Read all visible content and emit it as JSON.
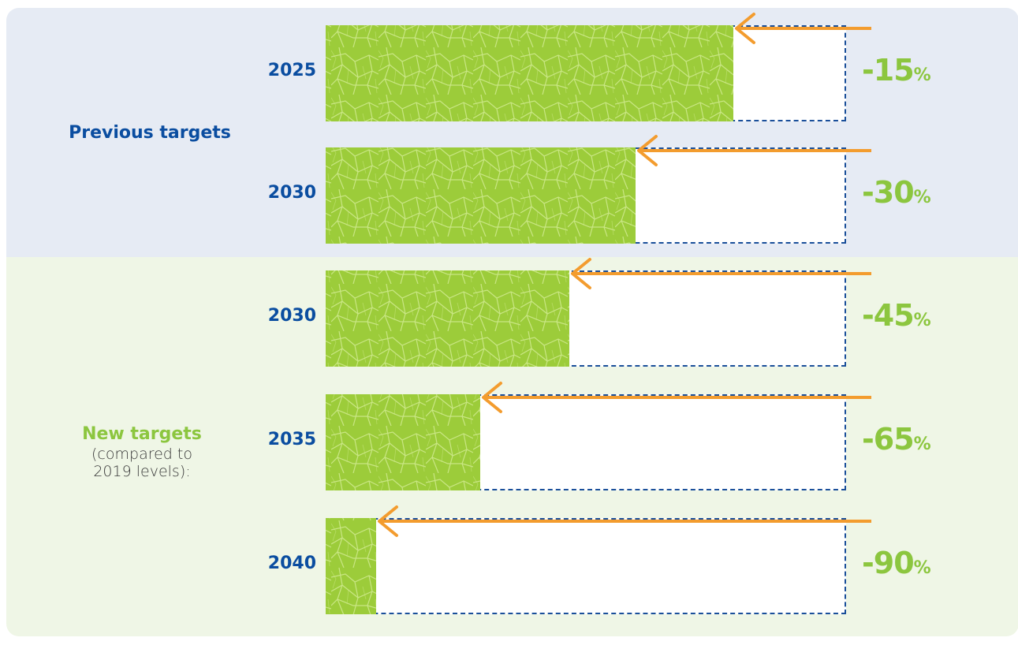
{
  "groups": {
    "previous": {
      "title": "Previous targets"
    },
    "new": {
      "title": "New targets",
      "subtitle_line1": "(compared to",
      "subtitle_line2": "2019 levels):"
    }
  },
  "colors": {
    "leaf": "#9ccc3a",
    "leaf_vein": "#d8ef9c",
    "frame": "#1a4f9a",
    "arrow": "#f39c2e",
    "year": "#0a4da0",
    "percent": "#8cc63f"
  },
  "chart_data": {
    "type": "bar",
    "orientation": "horizontal",
    "categories": [
      "2025",
      "2030",
      "2030",
      "2035",
      "2040"
    ],
    "groups": [
      "Previous targets",
      "Previous targets",
      "New targets",
      "New targets",
      "New targets"
    ],
    "values": [
      -15,
      -30,
      -45,
      -65,
      -90
    ],
    "value_labels": [
      "-15",
      "-30",
      "-45",
      "-65",
      "-90"
    ],
    "unit": "%",
    "xlim": [
      -100,
      0
    ]
  }
}
